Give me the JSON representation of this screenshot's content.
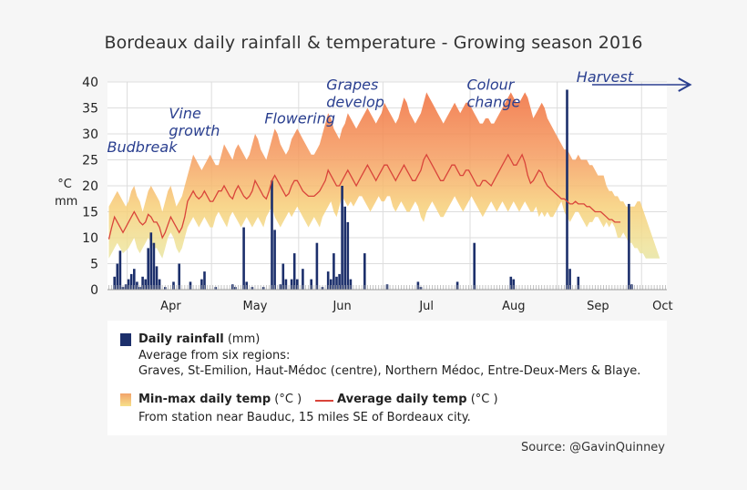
{
  "title": "Bordeaux daily rainfall & temperature - Growing season 2016",
  "yaxis": {
    "unit_top": "°C",
    "unit_bottom": "mm"
  },
  "legend": {
    "rain_label": "Daily rainfall",
    "rain_unit": "(mm)",
    "rain_desc1": "Average from six regions:",
    "rain_desc2": "Graves, St-Emilion, Haut-Médoc (centre), Northern Médoc, Entre-Deux-Mers & Blaye.",
    "range_label": "Min-max daily temp",
    "range_unit": "(°C )",
    "avg_label": "Average daily temp",
    "avg_unit": "(°C )",
    "temp_desc": "From station near Bauduc, 15 miles SE of Bordeaux city."
  },
  "source": "Source: @GavinQuinney",
  "colors": {
    "rain": "#1c2f6b",
    "avg_line": "#d9443a",
    "range_hot": "#f4a46c",
    "range_cool": "#dbe9a8",
    "annotation": "#2a3f8f"
  },
  "chart_data": {
    "type": "bar+line+area",
    "ylim": [
      0,
      40
    ],
    "yticks": [
      0,
      5,
      10,
      15,
      20,
      25,
      30,
      35,
      40
    ],
    "grid": true,
    "x_start_date": "2016-03-25",
    "months": [
      {
        "label": "Apr",
        "start_day": 7,
        "center_day": 22
      },
      {
        "label": "May",
        "start_day": 37,
        "center_day": 52
      },
      {
        "label": "Jun",
        "start_day": 68,
        "center_day": 83
      },
      {
        "label": "Jul",
        "start_day": 98,
        "center_day": 113
      },
      {
        "label": "Aug",
        "start_day": 129,
        "center_day": 144
      },
      {
        "label": "Sep",
        "start_day": 160,
        "center_day": 174
      },
      {
        "label": "Oct",
        "start_day": 190,
        "center_day": 197
      }
    ],
    "annotations": [
      {
        "text": "Budbreak",
        "lines": [
          "Budbreak"
        ],
        "day": 0,
        "y": 26.5
      },
      {
        "text": "Vine growth",
        "lines": [
          "Vine",
          "growth"
        ],
        "day": 22,
        "y": 33
      },
      {
        "text": "Flowering",
        "lines": [
          "Flowering"
        ],
        "day": 56,
        "y": 32
      },
      {
        "text": "Grapes develop",
        "lines": [
          "Grapes",
          "develop"
        ],
        "day": 78,
        "y": 38.5
      },
      {
        "text": "Colour change",
        "lines": [
          "Colour",
          "change"
        ],
        "day": 128,
        "y": 38.5
      },
      {
        "text": "Harvest",
        "lines": [
          "Harvest"
        ],
        "day": 167,
        "y": 40
      }
    ],
    "rainfall": [
      {
        "day": 2,
        "mm": 2.5
      },
      {
        "day": 3,
        "mm": 5
      },
      {
        "day": 4,
        "mm": 7.5
      },
      {
        "day": 5,
        "mm": 0.5
      },
      {
        "day": 6,
        "mm": 1
      },
      {
        "day": 7,
        "mm": 2
      },
      {
        "day": 8,
        "mm": 3
      },
      {
        "day": 9,
        "mm": 4
      },
      {
        "day": 10,
        "mm": 1.5
      },
      {
        "day": 11,
        "mm": 0.5
      },
      {
        "day": 12,
        "mm": 2.5
      },
      {
        "day": 13,
        "mm": 2
      },
      {
        "day": 14,
        "mm": 8
      },
      {
        "day": 15,
        "mm": 11
      },
      {
        "day": 16,
        "mm": 9
      },
      {
        "day": 17,
        "mm": 4.5
      },
      {
        "day": 18,
        "mm": 2
      },
      {
        "day": 20,
        "mm": 0.5
      },
      {
        "day": 23,
        "mm": 1.5
      },
      {
        "day": 25,
        "mm": 5
      },
      {
        "day": 29,
        "mm": 1.5
      },
      {
        "day": 33,
        "mm": 2
      },
      {
        "day": 34,
        "mm": 3.5
      },
      {
        "day": 38,
        "mm": 0.5
      },
      {
        "day": 44,
        "mm": 1
      },
      {
        "day": 45,
        "mm": 0.5
      },
      {
        "day": 48,
        "mm": 12
      },
      {
        "day": 49,
        "mm": 1.5
      },
      {
        "day": 51,
        "mm": 0.5
      },
      {
        "day": 55,
        "mm": 0.5
      },
      {
        "day": 58,
        "mm": 21
      },
      {
        "day": 59,
        "mm": 11.5
      },
      {
        "day": 61,
        "mm": 1
      },
      {
        "day": 62,
        "mm": 5
      },
      {
        "day": 63,
        "mm": 2
      },
      {
        "day": 65,
        "mm": 2
      },
      {
        "day": 66,
        "mm": 7
      },
      {
        "day": 67,
        "mm": 2
      },
      {
        "day": 69,
        "mm": 4
      },
      {
        "day": 72,
        "mm": 2
      },
      {
        "day": 74,
        "mm": 9
      },
      {
        "day": 76,
        "mm": 0.5
      },
      {
        "day": 78,
        "mm": 3.5
      },
      {
        "day": 79,
        "mm": 2
      },
      {
        "day": 80,
        "mm": 7
      },
      {
        "day": 81,
        "mm": 2.5
      },
      {
        "day": 82,
        "mm": 3
      },
      {
        "day": 83,
        "mm": 20
      },
      {
        "day": 84,
        "mm": 16
      },
      {
        "day": 85,
        "mm": 13
      },
      {
        "day": 86,
        "mm": 2
      },
      {
        "day": 91,
        "mm": 7
      },
      {
        "day": 99,
        "mm": 1
      },
      {
        "day": 110,
        "mm": 1.5
      },
      {
        "day": 111,
        "mm": 0.5
      },
      {
        "day": 124,
        "mm": 1.5
      },
      {
        "day": 130,
        "mm": 9
      },
      {
        "day": 143,
        "mm": 2.5
      },
      {
        "day": 144,
        "mm": 2
      },
      {
        "day": 163,
        "mm": 38.5
      },
      {
        "day": 164,
        "mm": 4
      },
      {
        "day": 167,
        "mm": 2.5
      },
      {
        "day": 185,
        "mm": 16.5
      },
      {
        "day": 186,
        "mm": 1
      }
    ],
    "temp_min": [
      6,
      7,
      8,
      9,
      8,
      7,
      7.5,
      8,
      9,
      10,
      8,
      7,
      8,
      9,
      10,
      9,
      8,
      8,
      7,
      6,
      8,
      10,
      11,
      10,
      8,
      7,
      8,
      10,
      12,
      13,
      14,
      13,
      12,
      13,
      14,
      13,
      12,
      12,
      14,
      15,
      14,
      13,
      12,
      14,
      15,
      14,
      13,
      12,
      13,
      14,
      13,
      12,
      13,
      14,
      13,
      12,
      14,
      15,
      16,
      14,
      13,
      12,
      13,
      14,
      15,
      14,
      15,
      16,
      15,
      14,
      13,
      12,
      13,
      14,
      13,
      12,
      14,
      15,
      16,
      17,
      15,
      14,
      16,
      18,
      17,
      16,
      17,
      16,
      17,
      18,
      18,
      17,
      16,
      15,
      16,
      17,
      18,
      17,
      17,
      18,
      18,
      16,
      15,
      16,
      17,
      16,
      15,
      15,
      16,
      17,
      16,
      14,
      13,
      15,
      16,
      17,
      16,
      15,
      14,
      14,
      15,
      16,
      17,
      18,
      17,
      16,
      15,
      16,
      17,
      18,
      17,
      16,
      15,
      14,
      15,
      16,
      17,
      16,
      15,
      16,
      17,
      16,
      15,
      16,
      17,
      16,
      15,
      16,
      17,
      16,
      15,
      15,
      16,
      14,
      15,
      14,
      15,
      14,
      14,
      15,
      16,
      17,
      15,
      14,
      13,
      14,
      15,
      15,
      14,
      13,
      12,
      13,
      13,
      14,
      14,
      13,
      12,
      13,
      12,
      13,
      12,
      10,
      10,
      11,
      10,
      9,
      9,
      8,
      8,
      7,
      7,
      6,
      6,
      6,
      6,
      6,
      6
    ],
    "temp_max": [
      16,
      17,
      18,
      19,
      18,
      17,
      16,
      17,
      19,
      20,
      18,
      17,
      15,
      17,
      19,
      20,
      19,
      18,
      17,
      15,
      17,
      19,
      20,
      18,
      16,
      17,
      18,
      20,
      22,
      24,
      26,
      25,
      24,
      23,
      24,
      25,
      26,
      25,
      24,
      24,
      26,
      28,
      27,
      26,
      25,
      27,
      28,
      27,
      26,
      25,
      26,
      28,
      30,
      29,
      27,
      26,
      25,
      27,
      29,
      31,
      30,
      28,
      27,
      26,
      27,
      29,
      30,
      31,
      30,
      29,
      28,
      27,
      26,
      26,
      27,
      28,
      30,
      32,
      34,
      33,
      31,
      30,
      29,
      31,
      32,
      34,
      33,
      32,
      31,
      32,
      33,
      34,
      35,
      34,
      33,
      32,
      33,
      34,
      36,
      35,
      34,
      33,
      32,
      33,
      35,
      37,
      36,
      34,
      33,
      32,
      33,
      34,
      36,
      38,
      37,
      36,
      35,
      34,
      33,
      32,
      33,
      34,
      35,
      36,
      35,
      34,
      35,
      36,
      36,
      35,
      34,
      33,
      32,
      32,
      33,
      33,
      32,
      32,
      33,
      34,
      35,
      36,
      37,
      38,
      37,
      36,
      36,
      37,
      38,
      37,
      35,
      33,
      34,
      35,
      36,
      35,
      33,
      32,
      31,
      30,
      29,
      28,
      27,
      27,
      26,
      25,
      25,
      26,
      25,
      25,
      25,
      24,
      24,
      23,
      22,
      22,
      22,
      20,
      19,
      19,
      18,
      18,
      17,
      17,
      16,
      16,
      16,
      16,
      17,
      17
    ],
    "temp_avg": [
      9.7,
      12,
      14,
      13,
      12,
      11,
      12,
      13,
      14,
      15,
      14,
      13,
      12.5,
      13,
      14.5,
      14,
      13,
      13,
      12,
      10,
      11,
      12.5,
      14,
      13,
      12,
      11,
      12,
      14,
      17,
      18,
      19,
      18,
      17.5,
      18,
      19,
      18,
      17,
      17,
      18,
      19,
      19,
      20,
      19,
      18,
      17.5,
      19,
      20,
      19,
      18,
      17.5,
      18,
      19,
      21,
      20,
      19,
      18,
      17.5,
      19,
      21,
      22,
      21,
      20,
      19,
      18,
      18.5,
      20,
      21,
      21,
      20,
      19,
      18.5,
      18,
      18,
      18,
      18.5,
      19,
      20,
      21,
      23,
      22,
      21,
      20,
      20,
      21,
      22,
      23,
      22,
      21,
      20,
      21,
      22,
      23,
      24,
      23,
      22,
      21,
      22,
      23,
      24,
      24,
      23,
      22,
      21,
      22,
      23,
      24,
      23,
      22,
      21,
      21,
      22,
      23,
      25,
      26,
      25,
      24,
      23,
      22,
      21,
      21,
      22,
      23,
      24,
      24,
      23,
      22,
      22,
      23,
      23,
      22,
      21,
      20,
      20,
      21,
      21,
      20.5,
      20,
      21,
      22,
      23,
      24,
      25,
      26,
      25,
      24,
      24,
      25,
      26,
      24.5,
      22,
      20.5,
      21,
      22,
      23,
      22.5,
      21,
      20,
      19.5,
      19,
      18.5,
      18,
      17.5,
      17.5,
      17,
      16.5,
      16.5,
      17,
      16.5,
      16.5,
      16.5,
      16,
      16,
      15.5,
      15,
      15,
      15,
      14.5,
      14,
      13.5,
      13.5,
      13,
      13,
      13
    ]
  }
}
